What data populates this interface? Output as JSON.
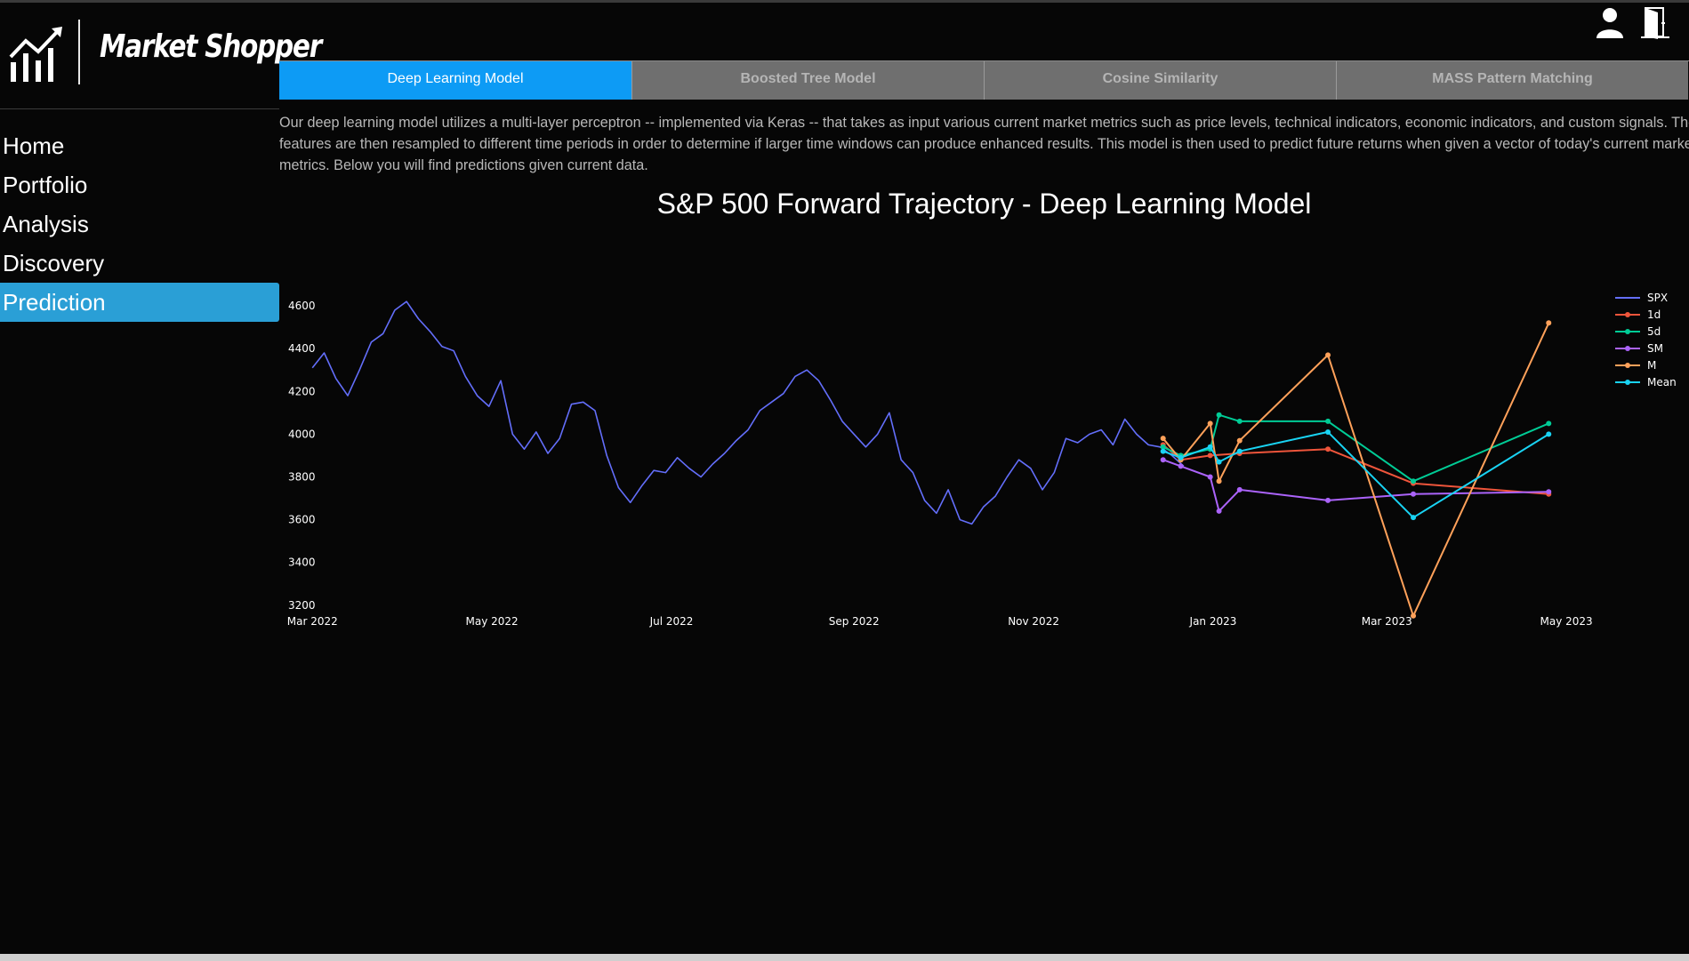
{
  "app": {
    "name": "Market Shopper"
  },
  "nav": {
    "items": [
      "Home",
      "Portfolio",
      "Analysis",
      "Discovery",
      "Prediction"
    ],
    "active": "Prediction"
  },
  "header_icons": [
    "user-icon",
    "logout-door-icon"
  ],
  "tabs": {
    "items": [
      "Deep Learning Model",
      "Boosted Tree Model",
      "Cosine Similarity",
      "MASS Pattern Matching"
    ],
    "active": "Deep Learning Model"
  },
  "description": [
    "Our deep learning model utilizes a multi-layer perceptron -- implemented via Keras -- that takes as input various current market metrics such as price levels, technical indicators, economic indicators, and custom signals. These",
    "features are then resampled to different time periods in order to determine if larger time windows can produce enhanced results. This model is then used to predict future returns when given a vector of today's current market",
    "metrics. Below you will find predictions given current data."
  ],
  "colors": {
    "accent": "#2a9fd6",
    "tab_active": "#0d9bf5",
    "tab_inactive": "#6f6f6f",
    "background": "#060606"
  },
  "chart_data": {
    "type": "line",
    "title": "S&P 500 Forward Trajectory - Deep Learning Model",
    "xlabel": "",
    "ylabel": "",
    "x_ticks": [
      "Mar 2022",
      "May 2022",
      "Jul 2022",
      "Sep 2022",
      "Nov 2022",
      "Jan 2023",
      "Mar 2023",
      "May 2023"
    ],
    "y_ticks": [
      3200,
      3400,
      3600,
      3800,
      4000,
      4200,
      4400,
      4600
    ],
    "ylim": [
      3120,
      4700
    ],
    "xlim": [
      "2022-02-25",
      "2023-05-20"
    ],
    "legend_position": "top-right",
    "grid": false,
    "series": [
      {
        "name": "SPX",
        "color": "#636efa",
        "markers": false,
        "x": [
          "2022-03-01",
          "2022-03-05",
          "2022-03-09",
          "2022-03-13",
          "2022-03-17",
          "2022-03-21",
          "2022-03-25",
          "2022-03-29",
          "2022-04-02",
          "2022-04-06",
          "2022-04-10",
          "2022-04-14",
          "2022-04-18",
          "2022-04-22",
          "2022-04-26",
          "2022-04-30",
          "2022-05-04",
          "2022-05-08",
          "2022-05-12",
          "2022-05-16",
          "2022-05-20",
          "2022-05-24",
          "2022-05-28",
          "2022-06-01",
          "2022-06-05",
          "2022-06-09",
          "2022-06-13",
          "2022-06-17",
          "2022-06-21",
          "2022-06-25",
          "2022-06-29",
          "2022-07-03",
          "2022-07-07",
          "2022-07-11",
          "2022-07-15",
          "2022-07-19",
          "2022-07-23",
          "2022-07-27",
          "2022-07-31",
          "2022-08-04",
          "2022-08-08",
          "2022-08-12",
          "2022-08-16",
          "2022-08-20",
          "2022-08-24",
          "2022-08-28",
          "2022-09-01",
          "2022-09-05",
          "2022-09-09",
          "2022-09-13",
          "2022-09-17",
          "2022-09-21",
          "2022-09-25",
          "2022-09-29",
          "2022-10-03",
          "2022-10-07",
          "2022-10-11",
          "2022-10-15",
          "2022-10-19",
          "2022-10-23",
          "2022-10-27",
          "2022-10-31",
          "2022-11-04",
          "2022-11-08",
          "2022-11-12",
          "2022-11-16",
          "2022-11-20",
          "2022-11-24",
          "2022-11-28",
          "2022-12-02",
          "2022-12-06",
          "2022-12-10",
          "2022-12-14",
          "2022-12-18",
          "2022-12-22"
        ],
        "values": [
          4310,
          4380,
          4260,
          4180,
          4300,
          4430,
          4470,
          4580,
          4620,
          4540,
          4480,
          4410,
          4390,
          4270,
          4180,
          4130,
          4250,
          4000,
          3930,
          4010,
          3910,
          3980,
          4140,
          4150,
          4110,
          3900,
          3750,
          3680,
          3760,
          3830,
          3820,
          3890,
          3840,
          3800,
          3860,
          3910,
          3970,
          4020,
          4110,
          4150,
          4190,
          4270,
          4300,
          4250,
          4160,
          4060,
          4000,
          3940,
          4000,
          4100,
          3880,
          3820,
          3690,
          3630,
          3740,
          3600,
          3580,
          3660,
          3710,
          3800,
          3880,
          3840,
          3740,
          3820,
          3980,
          3960,
          4000,
          4020,
          3950,
          4070,
          4000,
          3950,
          3940,
          3900,
          3850
        ]
      },
      {
        "name": "1d",
        "color": "#ef553b",
        "markers": true,
        "x": [
          "2022-12-15",
          "2022-12-21",
          "2022-12-31",
          "2023-01-10",
          "2023-02-09",
          "2023-03-10",
          "2023-04-25"
        ],
        "values": [
          3950,
          3880,
          3900,
          3910,
          3930,
          3770,
          3720
        ]
      },
      {
        "name": "5d",
        "color": "#00cc96",
        "markers": true,
        "x": [
          "2022-12-15",
          "2022-12-21",
          "2022-12-31",
          "2023-01-03",
          "2023-01-10",
          "2023-02-09",
          "2023-03-10",
          "2023-04-25"
        ],
        "values": [
          3940,
          3900,
          3930,
          4090,
          4060,
          4060,
          3780,
          4050
        ]
      },
      {
        "name": "SM",
        "color": "#ab63fa",
        "markers": true,
        "x": [
          "2022-12-15",
          "2022-12-21",
          "2022-12-31",
          "2023-01-03",
          "2023-01-10",
          "2023-02-09",
          "2023-03-10",
          "2023-04-25"
        ],
        "values": [
          3880,
          3850,
          3800,
          3640,
          3740,
          3690,
          3720,
          3730
        ]
      },
      {
        "name": "M",
        "color": "#ffa15a",
        "markers": true,
        "x": [
          "2022-12-15",
          "2022-12-21",
          "2022-12-31",
          "2023-01-03",
          "2023-01-10",
          "2023-02-09",
          "2023-03-10",
          "2023-04-25"
        ],
        "values": [
          3980,
          3880,
          4050,
          3780,
          3970,
          4370,
          3150,
          4520
        ]
      },
      {
        "name": "Mean",
        "color": "#19d3f3",
        "markers": true,
        "x": [
          "2022-12-15",
          "2022-12-21",
          "2022-12-31",
          "2023-01-03",
          "2023-01-10",
          "2023-02-09",
          "2023-03-10",
          "2023-04-25"
        ],
        "values": [
          3920,
          3890,
          3940,
          3870,
          3920,
          4010,
          3610,
          4000
        ]
      }
    ]
  }
}
